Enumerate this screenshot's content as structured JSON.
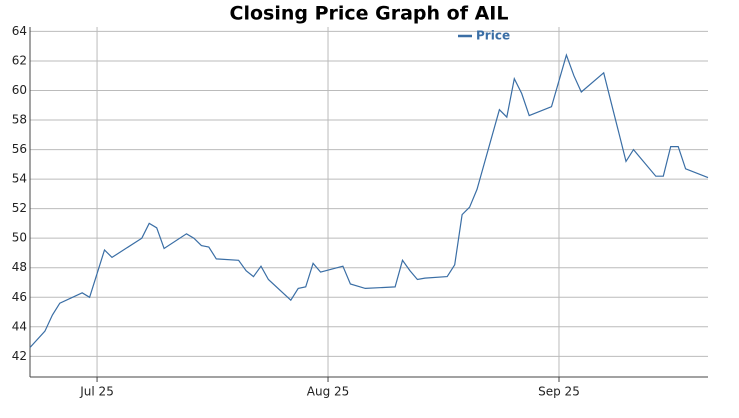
{
  "chart_data": {
    "type": "line",
    "title": "Closing Price Graph of AIL",
    "x": [
      "Jul 16",
      "Jul 18",
      "Jul 19",
      "Jul 20",
      "Jul 23",
      "Jul 24",
      "Jul 26",
      "Jul 27",
      "Jul 31",
      "Aug 1",
      "Aug 2",
      "Aug 3",
      "Aug 6",
      "Aug 7",
      "Aug 8",
      "Aug 9",
      "Aug 10",
      "Aug 13",
      "Aug 14",
      "Aug 15",
      "Aug 16",
      "Aug 17",
      "Aug 20",
      "Aug 21",
      "Aug 22",
      "Aug 23",
      "Aug 24",
      "Aug 27",
      "Aug 28",
      "Aug 30",
      "Sep 3",
      "Sep 4",
      "Sep 5",
      "Sep 6",
      "Sep 7",
      "Sep 10",
      "Sep 11",
      "Sep 12",
      "Sep 13",
      "Sep 14",
      "Sep 17",
      "Sep 18",
      "Sep 19",
      "Sep 20",
      "Sep 21",
      "Sep 24",
      "Sep 26",
      "Sep 27",
      "Sep 28",
      "Oct 1",
      "Oct 2",
      "Oct 3",
      "Oct 4",
      "Oct 5",
      "Oct 8",
      "Oct 9",
      "Oct 10",
      "Oct 11",
      "Oct 12",
      "Oct 15"
    ],
    "series": [
      {
        "name": "Price",
        "color": "#3a6ea5",
        "values": [
          42.6,
          43.7,
          44.8,
          45.6,
          46.3,
          46.0,
          49.2,
          48.7,
          50.0,
          51.0,
          50.7,
          49.3,
          50.3,
          50.0,
          49.5,
          49.4,
          48.6,
          48.5,
          47.8,
          47.4,
          48.1,
          47.2,
          45.8,
          46.6,
          46.7,
          48.3,
          47.7,
          48.1,
          46.9,
          46.6,
          46.7,
          48.5,
          47.8,
          47.2,
          47.3,
          47.4,
          48.2,
          51.6,
          52.1,
          53.3,
          58.7,
          58.2,
          60.8,
          59.8,
          58.3,
          58.9,
          62.4,
          61.0,
          59.9,
          61.2,
          59.2,
          57.2,
          55.2,
          56.0,
          54.2,
          54.2,
          56.2,
          56.2,
          54.7,
          54.1
        ]
      }
    ],
    "xlim": [
      "Jul 16",
      "Oct 15"
    ],
    "xticks": [
      "Jul 25",
      "Aug 25",
      "Sep 25"
    ],
    "ylim": [
      40.6,
      64.3
    ],
    "yticks": [
      42,
      44,
      46,
      48,
      50,
      52,
      54,
      56,
      58,
      60,
      62,
      64
    ],
    "grid": true,
    "legend": "top"
  }
}
